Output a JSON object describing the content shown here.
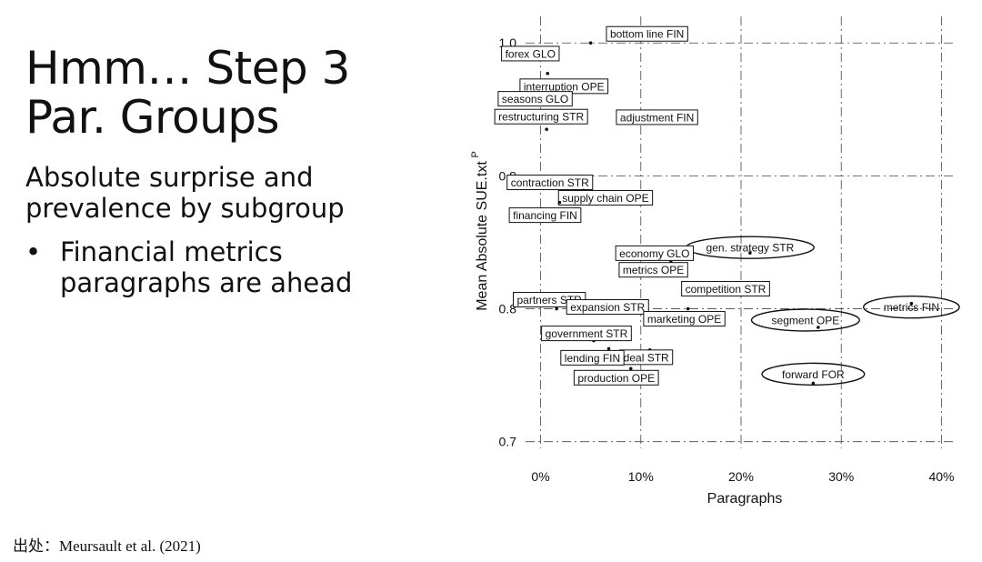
{
  "slide": {
    "title_line1": "Hmm… Step 3",
    "title_line2": "Par. Groups",
    "subtitle": "Absolute surprise and prevalence by subgroup",
    "bullet": "Financial metrics paragraphs are ahead",
    "bullet_marker": "•",
    "source": "出处：Meursault et al. (2021)"
  },
  "chart_data": {
    "type": "scatter",
    "xlabel": "Paragraphs",
    "ylabel": "Mean Absolute SUE.txt",
    "ylabel_superscript": "P",
    "xlim": [
      -0.015,
      0.415
    ],
    "ylim": [
      0.695,
      1.02
    ],
    "x_ticks": [
      0,
      0.1,
      0.2,
      0.3,
      0.4
    ],
    "x_tick_labels": [
      "0%",
      "10%",
      "20%",
      "30%",
      "40%"
    ],
    "y_ticks": [
      0.7,
      0.8,
      0.9,
      1.0
    ],
    "y_tick_labels": [
      "0.7",
      "0.8",
      "0.9",
      "1.0"
    ],
    "grid": true,
    "points": [
      {
        "label": "bottom line FIN",
        "x": 0.05,
        "y": 1.0,
        "highlight": false
      },
      {
        "label": "forex GLO",
        "x": 0.017,
        "y": 0.992,
        "highlight": false
      },
      {
        "label": "interruption OPE",
        "x": 0.007,
        "y": 0.977,
        "highlight": false
      },
      {
        "label": "seasons GLO",
        "x": 0.02,
        "y": 0.958,
        "highlight": false
      },
      {
        "label": "adjustment FIN",
        "x": 0.118,
        "y": 0.94,
        "highlight": false
      },
      {
        "label": "restructuring STR",
        "x": 0.006,
        "y": 0.935,
        "highlight": false
      },
      {
        "label": "contraction STR",
        "x": 0.002,
        "y": 0.891,
        "highlight": false
      },
      {
        "label": "supply chain OPE",
        "x": 0.043,
        "y": 0.889,
        "highlight": false
      },
      {
        "label": "financing FIN",
        "x": 0.019,
        "y": 0.88,
        "highlight": false
      },
      {
        "label": "gen. strategy STR",
        "x": 0.209,
        "y": 0.842,
        "highlight": true
      },
      {
        "label": "economy GLO",
        "x": 0.13,
        "y": 0.835,
        "highlight": false
      },
      {
        "label": "metrics FIN",
        "x": 0.37,
        "y": 0.804,
        "highlight": true
      },
      {
        "label": "partners STR",
        "x": 0.016,
        "y": 0.8,
        "highlight": false
      },
      {
        "label": "metrics OPE",
        "x": 0.118,
        "y": 0.83,
        "highlight": false
      },
      {
        "label": "competition STR",
        "x": 0.151,
        "y": 0.811,
        "highlight": false
      },
      {
        "label": "expansion STR",
        "x": 0.085,
        "y": 0.8,
        "highlight": false
      },
      {
        "label": "marketing OPE",
        "x": 0.147,
        "y": 0.8,
        "highlight": false
      },
      {
        "label": "segment OPE",
        "x": 0.277,
        "y": 0.786,
        "highlight": true
      },
      {
        "label": "government STR",
        "x": 0.053,
        "y": 0.776,
        "highlight": false
      },
      {
        "label": "deal STR",
        "x": 0.109,
        "y": 0.769,
        "highlight": false
      },
      {
        "label": "lending FIN",
        "x": 0.068,
        "y": 0.77,
        "highlight": false
      },
      {
        "label": "production OPE",
        "x": 0.09,
        "y": 0.755,
        "highlight": false
      },
      {
        "label": "forward FOR",
        "x": 0.272,
        "y": 0.744,
        "highlight": true
      }
    ]
  }
}
